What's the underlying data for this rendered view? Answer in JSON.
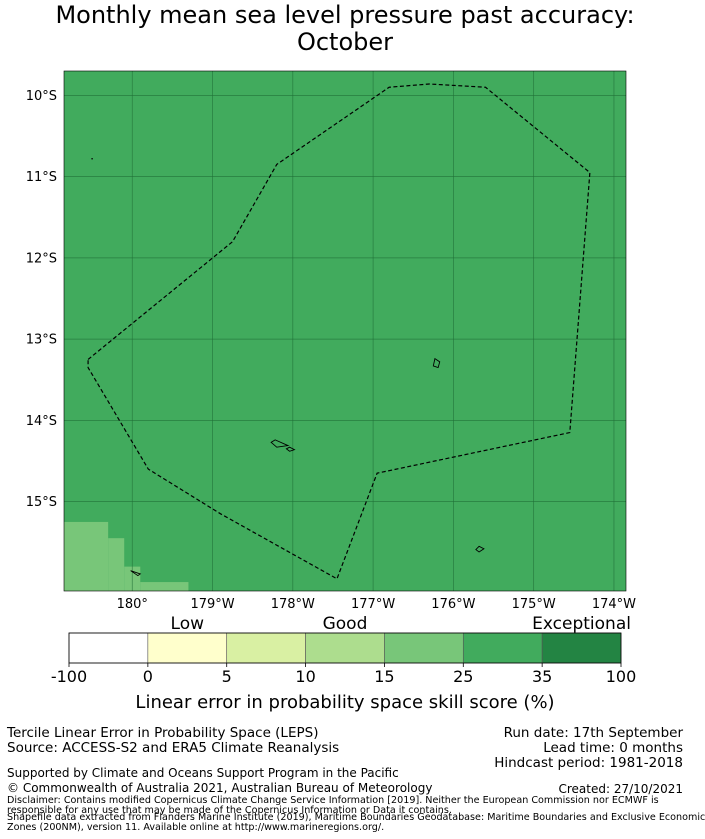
{
  "chart_data": {
    "type": "heatmap",
    "title_lines": [
      "Monthly mean sea level pressure past accuracy:",
      "October"
    ],
    "map": {
      "lon_range": [
        -180.85,
        -173.85
      ],
      "lat_range": [
        -16.1,
        -9.7
      ],
      "lon_ticks": [
        {
          "value": -180,
          "label": "180°"
        },
        {
          "value": -179,
          "label": "179°W"
        },
        {
          "value": -178,
          "label": "178°W"
        },
        {
          "value": -177,
          "label": "177°W"
        },
        {
          "value": -176,
          "label": "176°W"
        },
        {
          "value": -175,
          "label": "175°W"
        },
        {
          "value": -174,
          "label": "174°W"
        }
      ],
      "lat_ticks": [
        {
          "value": -10,
          "label": "10°S"
        },
        {
          "value": -11,
          "label": "11°S"
        },
        {
          "value": -12,
          "label": "12°S"
        },
        {
          "value": -13,
          "label": "13°S"
        },
        {
          "value": -14,
          "label": "14°S"
        },
        {
          "value": -15,
          "label": "15°S"
        }
      ],
      "grid": true,
      "dominant_class": "25-35",
      "eez_boundary": [
        [
          -180.55,
          -13.25
        ],
        [
          -178.75,
          -11.8
        ],
        [
          -178.2,
          -10.85
        ],
        [
          -176.8,
          -9.9
        ],
        [
          -176.3,
          -9.86
        ],
        [
          -175.6,
          -9.9
        ],
        [
          -174.3,
          -10.95
        ],
        [
          -174.55,
          -14.15
        ],
        [
          -176.95,
          -14.65
        ],
        [
          -177.45,
          -15.95
        ],
        [
          -178.9,
          -15.15
        ],
        [
          -179.8,
          -14.6
        ],
        [
          -180.55,
          -13.35
        ]
      ],
      "islands": [
        [
          [
            -176.23,
            -13.24
          ],
          [
            -176.17,
            -13.28
          ],
          [
            -176.19,
            -13.35
          ],
          [
            -176.25,
            -13.33
          ]
        ],
        [
          [
            -178.22,
            -14.24
          ],
          [
            -178.06,
            -14.31
          ],
          [
            -178.2,
            -14.33
          ],
          [
            -178.27,
            -14.27
          ]
        ],
        [
          [
            -178.04,
            -14.33
          ],
          [
            -177.98,
            -14.36
          ],
          [
            -178.04,
            -14.38
          ],
          [
            -178.08,
            -14.35
          ]
        ],
        [
          [
            -175.68,
            -15.55
          ],
          [
            -175.62,
            -15.58
          ],
          [
            -175.68,
            -15.62
          ],
          [
            -175.72,
            -15.59
          ]
        ],
        [
          [
            -180.02,
            -15.85
          ],
          [
            -179.9,
            -15.89
          ],
          [
            -179.93,
            -15.91
          ]
        ]
      ],
      "lower_class_cells": [
        {
          "class": "15-25",
          "lon": [
            -180.85,
            -180.3
          ],
          "lat": [
            -15.25,
            -16.1
          ]
        },
        {
          "class": "15-25",
          "lon": [
            -180.3,
            -180.1
          ],
          "lat": [
            -15.45,
            -16.1
          ]
        },
        {
          "class": "15-25",
          "lon": [
            -180.1,
            -179.9
          ],
          "lat": [
            -15.8,
            -16.1
          ]
        },
        {
          "class": "15-25",
          "lon": [
            -179.9,
            -179.3
          ],
          "lat": [
            -15.99,
            -16.1
          ]
        }
      ]
    },
    "colorbar": {
      "bins": [
        -100,
        0,
        5,
        10,
        15,
        25,
        35,
        100
      ],
      "tick_labels": [
        "-100",
        "0",
        "5",
        "10",
        "15",
        "25",
        "35",
        "100"
      ],
      "colors": [
        "#ffffff",
        "#ffffcc",
        "#d9f0a3",
        "#addd8e",
        "#78c679",
        "#41ab5d",
        "#238443"
      ],
      "category_labels": [
        {
          "label": "Low",
          "bin_center": 1
        },
        {
          "label": "Good",
          "bin_center": 3
        },
        {
          "label": "Exceptional",
          "bin_center": 6
        }
      ],
      "label": "Linear error in probability space skill score (%)"
    }
  },
  "footer": {
    "left_line1": "Tercile Linear Error in Probability Space (LEPS)",
    "left_line2": "Source: ACCESS-S2 and ERA5 Climate Reanalysis",
    "right_line1": "Run date: 17th September",
    "right_line2": "Lead time: 0 months",
    "right_line3": "Hindcast period: 1981-2018",
    "support": "Supported by Climate and Oceans Support Program in the Pacific",
    "copyright": "© Commonwealth of Australia 2021, Australian Bureau of Meteorology",
    "created": "Created: 27/10/2021",
    "disclaimer1": "Disclaimer: Contains modified Copernicus Climate Change Service Information [2019]. Neither the European Commission nor ECMWF is",
    "disclaimer2": "responsible for any use that may be made of the Copernicus Information or Data it contains.",
    "disclaimer3": "Shapefile data extracted from Flanders Marine Institute (2019), Maritime Boundaries Geodatabase: Maritime Boundaries and Exclusive Economic",
    "disclaimer4": "Zones (200NM), version 11. Available online at http://www.marineregions.org/."
  }
}
